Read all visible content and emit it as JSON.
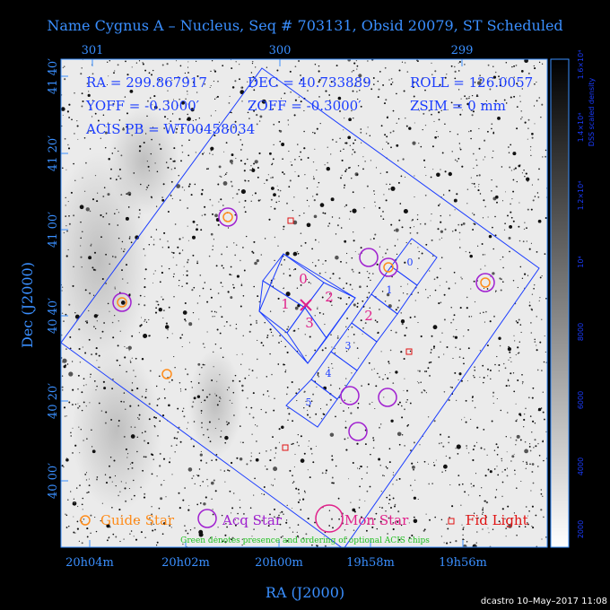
{
  "title": "Name Cygnus A – Nucleus, Seq # 703131, Obsid 20079, ST Scheduled",
  "top_axis_labels": [
    "301",
    "300",
    "299"
  ],
  "bottom_axis_labels": [
    "20h04m",
    "20h02m",
    "20h00m",
    "19h58m",
    "19h56m"
  ],
  "left_axis_labels": [
    "41 40′",
    "41 20′",
    "41 00′",
    "40 40′",
    "40 20′",
    "40 00′"
  ],
  "x_axis_title": "RA (J2000)",
  "y_axis_title": "Dec (J2000)",
  "info": {
    "ra": "RA = 299.867917",
    "dec": "DEC = 40.733889",
    "roll": "ROLL = 126.0057",
    "yoff": "YOFF = -0.3000′",
    "zoff": "ZOFF = -0.3000′",
    "zsim": "ZSIM = 0 mm",
    "acis_pb": "ACIS PB = WT00458034"
  },
  "chip_labels": {
    "i0": "0",
    "i1": "1",
    "i2": "2",
    "i3": "3",
    "s0": "0",
    "s1": "1",
    "s2": "2",
    "s3": "3",
    "s4": "4",
    "s5": "5"
  },
  "legend": {
    "guide": "Guide Star",
    "acq": "Acq Star",
    "mon": "Mon Star",
    "fid": "Fid Light",
    "note": "Green denotes presence and ordering of optional ACIS chips"
  },
  "colorbar": {
    "title": "DSS scaled density",
    "ticks": [
      "2000",
      "4000",
      "6000",
      "8000",
      "10⁴",
      "1.2×10⁴",
      "1.4×10⁴",
      "1.6×10⁴"
    ]
  },
  "footer": "dcastro 10–May–2017 11:08",
  "colors": {
    "axis_text": "#3a8fff",
    "info_text": "#1a3cff",
    "field_outline": "#1a3cff",
    "acis_chip_label_i": "#e0208a",
    "guide_star": "#ff8c1a",
    "acq_star": "#a020d0",
    "mon_star": "#e0208a",
    "fid_light": "#e01010",
    "note_text": "#20c020"
  }
}
